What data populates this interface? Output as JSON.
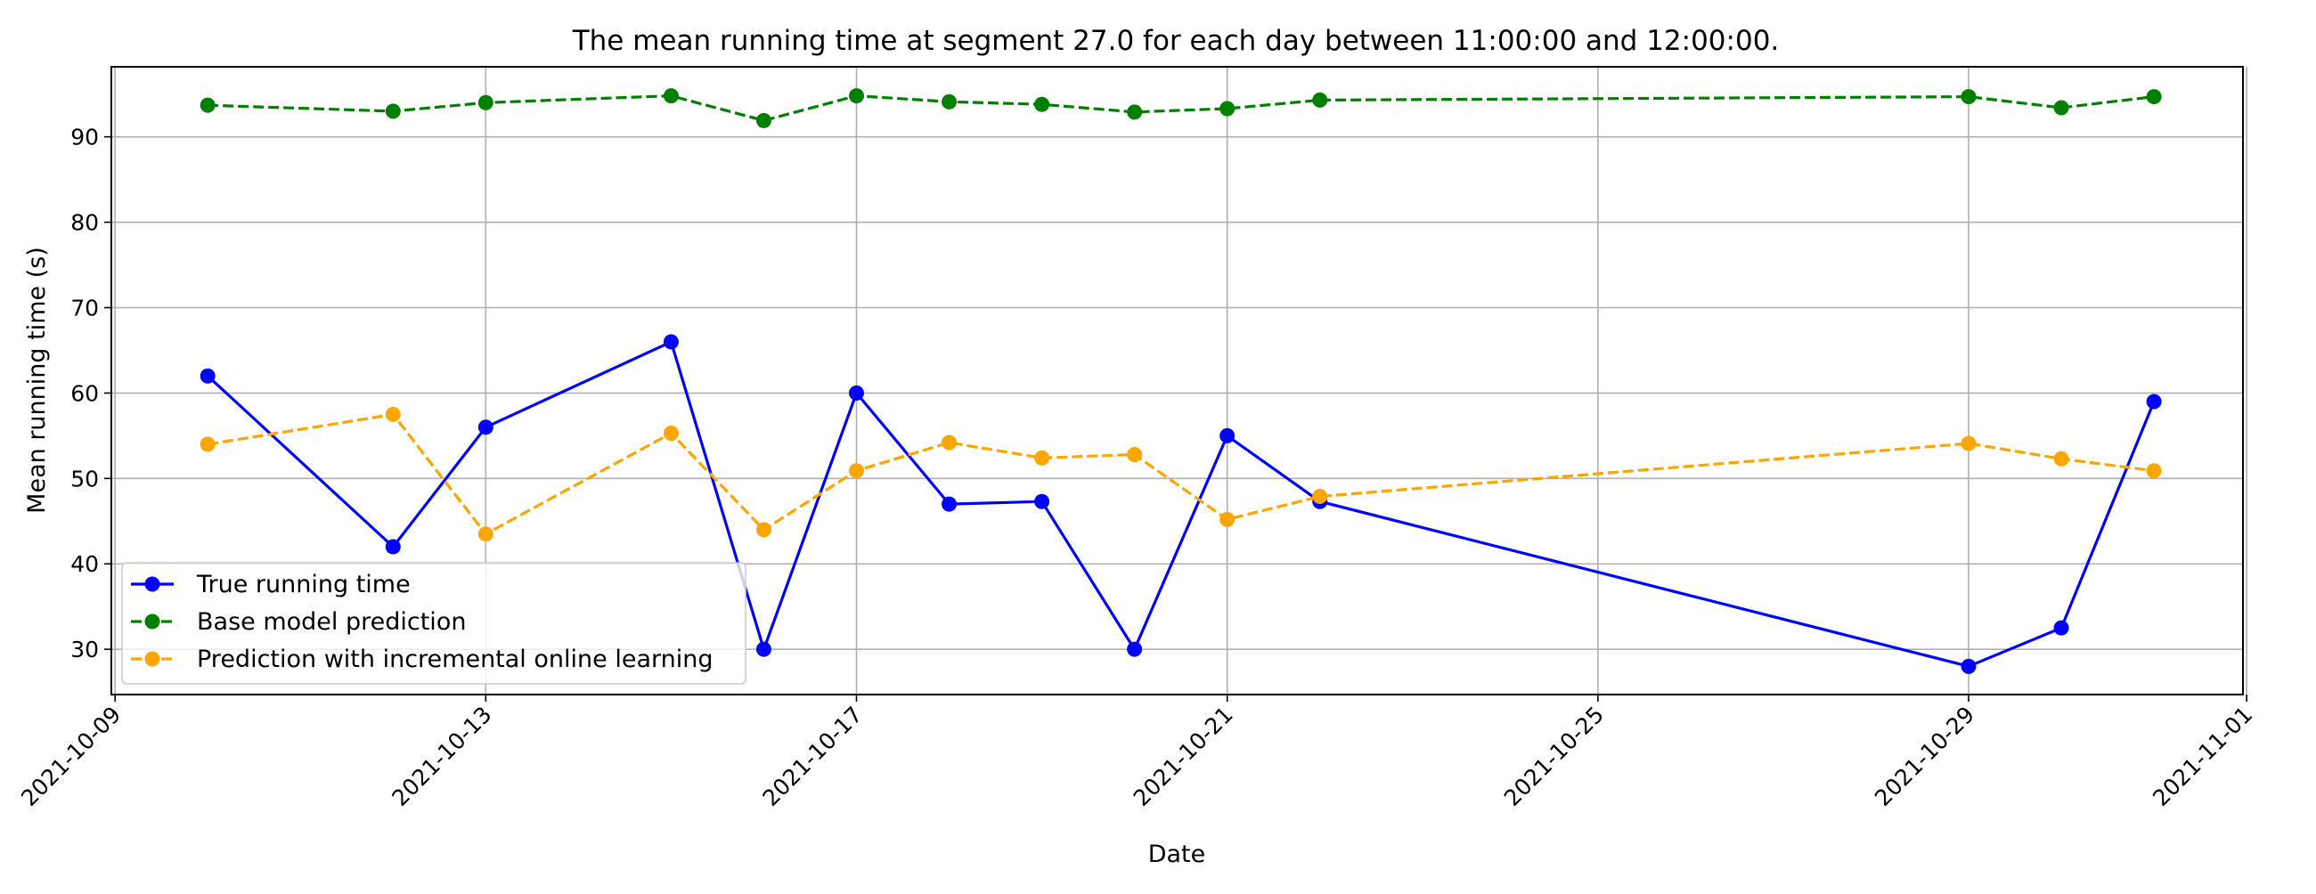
{
  "chart_data": {
    "type": "line",
    "title": "The mean running time at segment 27.0 for each day between 11:00:00 and 12:00:00.",
    "xlabel": "Date",
    "ylabel": "Mean running time (s)",
    "x_ticks": [
      "2021-10-09",
      "2021-10-13",
      "2021-10-17",
      "2021-10-21",
      "2021-10-25",
      "2021-10-29",
      "2021-11-01"
    ],
    "y_ticks": [
      30,
      40,
      50,
      60,
      70,
      80,
      90
    ],
    "xlim": [
      "2021-10-09",
      "2021-11-01"
    ],
    "ylim": [
      24.7,
      98.2
    ],
    "grid": true,
    "legend_position": "lower-left",
    "x": [
      "2021-10-10",
      "2021-10-12",
      "2021-10-13",
      "2021-10-15",
      "2021-10-16",
      "2021-10-17",
      "2021-10-18",
      "2021-10-19",
      "2021-10-20",
      "2021-10-21",
      "2021-10-22",
      "2021-10-29",
      "2021-10-30",
      "2021-10-31"
    ],
    "series": [
      {
        "name": "True running time",
        "color": "#0000ff",
        "style": "solid",
        "values": [
          62.0,
          42.0,
          56.0,
          66.0,
          30.0,
          60.0,
          47.0,
          47.3,
          30.0,
          55.0,
          47.3,
          28.0,
          32.5,
          59.0
        ]
      },
      {
        "name": "Base model prediction",
        "color": "#008000",
        "style": "dashed",
        "values": [
          93.7,
          93.0,
          94.0,
          94.8,
          91.9,
          94.8,
          94.1,
          93.8,
          92.9,
          93.3,
          94.3,
          94.7,
          93.4,
          94.7
        ]
      },
      {
        "name": "Prediction with incremental online learning",
        "color": "#ffa500",
        "style": "dashed",
        "values": [
          54.0,
          57.5,
          43.5,
          55.3,
          44.0,
          50.9,
          54.2,
          52.4,
          52.8,
          45.2,
          47.9,
          54.1,
          52.3,
          50.9
        ]
      }
    ]
  }
}
